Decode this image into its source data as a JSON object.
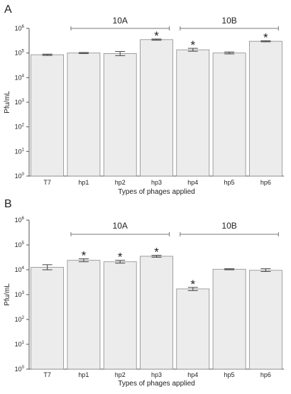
{
  "figure": {
    "panel_letters": [
      "A",
      "B"
    ]
  },
  "chart_data": [
    {
      "type": "bar",
      "panel": "A",
      "categories": [
        "T7",
        "hp1",
        "hp2",
        "hp3",
        "hp4",
        "hp5",
        "hp6"
      ],
      "values": [
        85000,
        100000,
        95000,
        350000,
        135000,
        100000,
        300000
      ],
      "error_low": [
        80000,
        95000,
        78000,
        330000,
        118000,
        92000,
        285000
      ],
      "error_high": [
        90000,
        105000,
        115000,
        370000,
        155000,
        110000,
        315000
      ],
      "significant": [
        false,
        false,
        false,
        true,
        true,
        false,
        true
      ],
      "significance_label": "*",
      "groups": [
        {
          "label": "10A",
          "from": "hp1",
          "to": "hp3"
        },
        {
          "label": "10B",
          "from": "hp4",
          "to": "hp6"
        }
      ],
      "xlabel": "Types of phages applied",
      "ylabel": "Pfu/mL",
      "yscale": "log",
      "ylim": [
        1,
        1000000
      ],
      "ytick_base": "10",
      "ytick_exponents": [
        "0",
        "1",
        "2",
        "3",
        "4",
        "5",
        "6"
      ],
      "bar_color": "#ececec"
    },
    {
      "type": "bar",
      "panel": "B",
      "categories": [
        "T7",
        "hp1",
        "hp2",
        "hp3",
        "hp4",
        "hp5",
        "hp6"
      ],
      "values": [
        12500,
        24000,
        21000,
        35000,
        1700,
        10500,
        9500
      ],
      "error_low": [
        10000,
        21000,
        18500,
        32000,
        1450,
        10000,
        8500
      ],
      "error_high": [
        16000,
        27500,
        24000,
        38000,
        1950,
        11000,
        11000
      ],
      "significant": [
        false,
        true,
        true,
        true,
        true,
        false,
        false
      ],
      "significance_label": "*",
      "groups": [
        {
          "label": "10A",
          "from": "hp1",
          "to": "hp3"
        },
        {
          "label": "10B",
          "from": "hp4",
          "to": "hp6"
        }
      ],
      "xlabel": "Types of phages applied",
      "ylabel": "Pfu/mL",
      "yscale": "log",
      "ylim": [
        1,
        1000000
      ],
      "ytick_base": "10",
      "ytick_exponents": [
        "0",
        "1",
        "2",
        "3",
        "4",
        "5",
        "6"
      ],
      "bar_color": "#ececec"
    }
  ]
}
